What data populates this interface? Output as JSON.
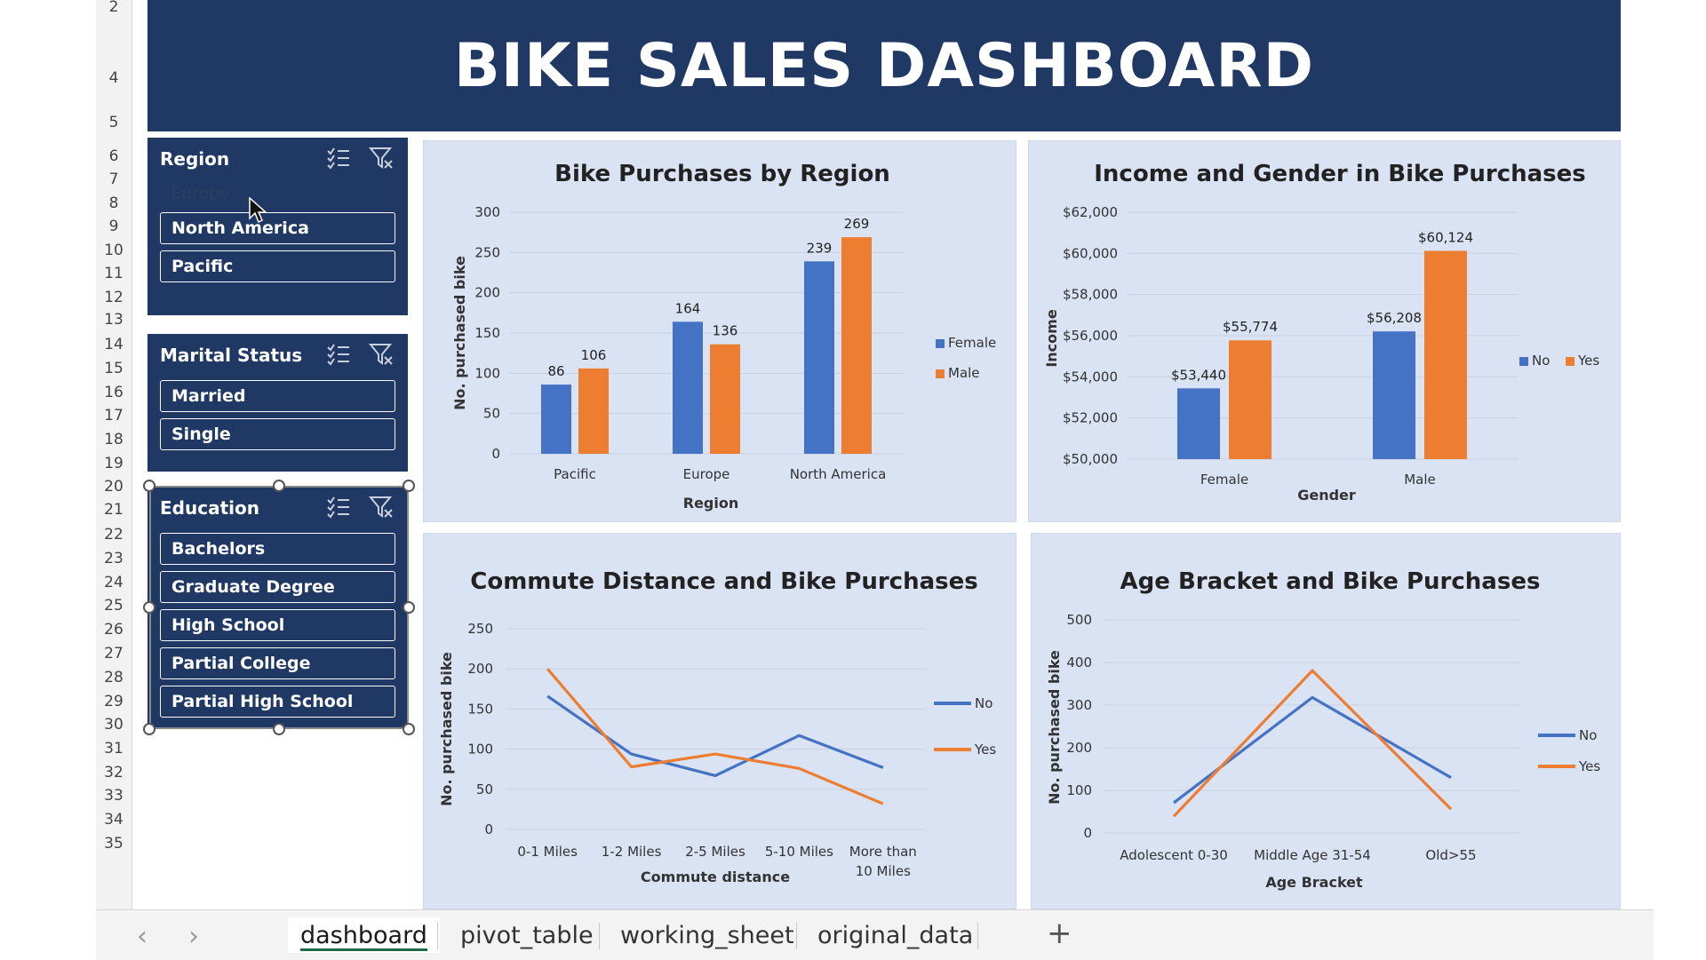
{
  "row_numbers": [
    "2",
    "4",
    "5",
    "6",
    "7",
    "8",
    "9",
    "10",
    "11",
    "12",
    "13",
    "14",
    "15",
    "16",
    "17",
    "18",
    "19",
    "20",
    "21",
    "22",
    "23",
    "24",
    "25",
    "26",
    "27",
    "28",
    "29",
    "30",
    "31",
    "32",
    "33",
    "34",
    "35"
  ],
  "banner": {
    "title": "BIKE SALES DASHBOARD"
  },
  "slicers": {
    "region": {
      "title": "Region",
      "items": [
        {
          "label": "Europe",
          "selected": false
        },
        {
          "label": "North America",
          "selected": true
        },
        {
          "label": "Pacific",
          "selected": true
        }
      ]
    },
    "marital": {
      "title": "Marital Status",
      "items": [
        {
          "label": "Married",
          "selected": true
        },
        {
          "label": "Single",
          "selected": true
        }
      ]
    },
    "education": {
      "title": "Education",
      "items": [
        {
          "label": "Bachelors",
          "selected": true
        },
        {
          "label": "Graduate Degree",
          "selected": true
        },
        {
          "label": "High School",
          "selected": true
        },
        {
          "label": "Partial College",
          "selected": true
        },
        {
          "label": "Partial High School",
          "selected": true
        }
      ]
    }
  },
  "colors": {
    "blue": "#4472c4",
    "orange": "#ed7d31",
    "banner": "#1f3864",
    "panel": "#dae3f3"
  },
  "chart_data": [
    {
      "type": "bar",
      "title": "Bike Purchases by Region",
      "xlabel": "Region",
      "ylabel": "No. purchased bike",
      "categories": [
        "Pacific",
        "Europe",
        "North America"
      ],
      "series": [
        {
          "name": "Female",
          "values": [
            86,
            164,
            239
          ]
        },
        {
          "name": "Male",
          "values": [
            106,
            136,
            269
          ]
        }
      ],
      "ylim": [
        0,
        300
      ],
      "yticks": [
        "0",
        "50",
        "100",
        "150",
        "200",
        "250",
        "300"
      ],
      "legend": "right"
    },
    {
      "type": "bar",
      "title": "Income and Gender in Bike Purchases",
      "xlabel": "Gender",
      "ylabel": "Income",
      "categories": [
        "Female",
        "Male"
      ],
      "series": [
        {
          "name": "No",
          "values": [
            53440,
            56208
          ]
        },
        {
          "name": "Yes",
          "values": [
            55774,
            60124
          ]
        }
      ],
      "data_labels": [
        [
          "$53,440",
          "$56,208"
        ],
        [
          "$55,774",
          "$60,124"
        ]
      ],
      "ylim": [
        50000,
        62000
      ],
      "yticks": [
        "$50,000",
        "$52,000",
        "$54,000",
        "$56,000",
        "$58,000",
        "$60,000",
        "$62,000"
      ],
      "legend": "right"
    },
    {
      "type": "line",
      "title": "Commute Distance and Bike Purchases",
      "xlabel": "Commute distance",
      "ylabel": "No. purchased bike",
      "categories": [
        "0-1 Miles",
        "1-2 Miles",
        "2-5 Miles",
        "5-10 Miles",
        "More than 10 Miles"
      ],
      "series": [
        {
          "name": "No",
          "values": [
            166,
            94,
            67,
            117,
            77
          ]
        },
        {
          "name": "Yes",
          "values": [
            200,
            78,
            94,
            76,
            32
          ]
        }
      ],
      "ylim": [
        0,
        250
      ],
      "yticks": [
        "0",
        "50",
        "100",
        "150",
        "200",
        "250"
      ],
      "legend": "right"
    },
    {
      "type": "line",
      "title": "Age Bracket and Bike Purchases",
      "xlabel": "Age Bracket",
      "ylabel": "No. purchased bike",
      "categories": [
        "Adolescent 0-30",
        "Middle Age 31-54",
        "Old>55"
      ],
      "series": [
        {
          "name": "No",
          "values": [
            71,
            318,
            130
          ]
        },
        {
          "name": "Yes",
          "values": [
            39,
            381,
            56
          ]
        }
      ],
      "ylim": [
        0,
        500
      ],
      "yticks": [
        "0",
        "100",
        "200",
        "300",
        "400",
        "500"
      ],
      "legend": "right"
    }
  ],
  "tabs": [
    "dashboard",
    "pivot_table",
    "working_sheet",
    "original_data"
  ],
  "active_tab": "dashboard",
  "add_tab_symbol": "+",
  "nav": {
    "prev": "‹",
    "next": "›"
  }
}
